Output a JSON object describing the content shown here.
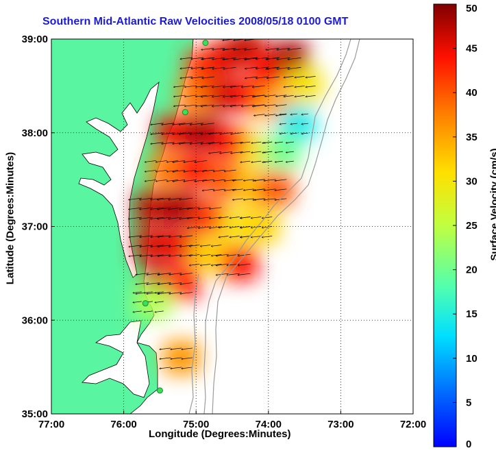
{
  "chart_data": {
    "type": "heatmap",
    "title": "Southern Mid-Atlantic Raw Velocities 2008/05/18 0100 GMT",
    "xlabel": "Longitude (Degrees:Minutes)",
    "ylabel": "Latitude (Degrees:Minutes)",
    "xlim": [
      -77,
      -72
    ],
    "ylim": [
      35,
      39
    ],
    "x_ticks": [
      {
        "value": -77,
        "label": "77:00"
      },
      {
        "value": -76,
        "label": "76:00"
      },
      {
        "value": -75,
        "label": "75:00"
      },
      {
        "value": -74,
        "label": "74:00"
      },
      {
        "value": -73,
        "label": "73:00"
      },
      {
        "value": -72,
        "label": "72:00"
      }
    ],
    "y_ticks": [
      {
        "value": 35,
        "label": "35:00"
      },
      {
        "value": 36,
        "label": "36:00"
      },
      {
        "value": 37,
        "label": "37:00"
      },
      {
        "value": 38,
        "label": "38:00"
      },
      {
        "value": 39,
        "label": "39:00"
      }
    ],
    "grid": true,
    "colorbar": {
      "label": "Surface Velocity (cm/s)",
      "range": [
        0,
        50
      ],
      "colormap": "jet",
      "ticks": [
        {
          "value": 0,
          "label": "0"
        },
        {
          "value": 5,
          "label": "5"
        },
        {
          "value": 10,
          "label": "10"
        },
        {
          "value": 15,
          "label": "15"
        },
        {
          "value": 20,
          "label": "20"
        },
        {
          "value": 25,
          "label": "25"
        },
        {
          "value": 30,
          "label": "30"
        },
        {
          "value": 35,
          "label": "35"
        },
        {
          "value": 40,
          "label": "40"
        },
        {
          "value": 45,
          "label": "45"
        },
        {
          "value": 50,
          "label": "50"
        }
      ]
    },
    "field": [
      {
        "lon": -74.9,
        "lat": 38.7,
        "speed": 42
      },
      {
        "lon": -74.6,
        "lat": 38.8,
        "speed": 45
      },
      {
        "lon": -74.3,
        "lat": 38.9,
        "speed": 47
      },
      {
        "lon": -74.0,
        "lat": 38.7,
        "speed": 44
      },
      {
        "lon": -73.7,
        "lat": 38.8,
        "speed": 48
      },
      {
        "lon": -73.5,
        "lat": 38.5,
        "speed": 30
      },
      {
        "lon": -75.0,
        "lat": 38.4,
        "speed": 38
      },
      {
        "lon": -74.6,
        "lat": 38.4,
        "speed": 46
      },
      {
        "lon": -74.2,
        "lat": 38.4,
        "speed": 44
      },
      {
        "lon": -73.9,
        "lat": 38.3,
        "speed": 35
      },
      {
        "lon": -73.6,
        "lat": 38.1,
        "speed": 14
      },
      {
        "lon": -75.3,
        "lat": 38.0,
        "speed": 45
      },
      {
        "lon": -74.9,
        "lat": 38.0,
        "speed": 48
      },
      {
        "lon": -74.5,
        "lat": 37.9,
        "speed": 44
      },
      {
        "lon": -74.1,
        "lat": 37.8,
        "speed": 30
      },
      {
        "lon": -73.8,
        "lat": 37.8,
        "speed": 20
      },
      {
        "lon": -75.4,
        "lat": 37.6,
        "speed": 38
      },
      {
        "lon": -75.0,
        "lat": 37.6,
        "speed": 44
      },
      {
        "lon": -74.6,
        "lat": 37.5,
        "speed": 40
      },
      {
        "lon": -74.2,
        "lat": 37.4,
        "speed": 33
      },
      {
        "lon": -73.9,
        "lat": 37.4,
        "speed": 40
      },
      {
        "lon": -75.6,
        "lat": 37.2,
        "speed": 47
      },
      {
        "lon": -75.2,
        "lat": 37.2,
        "speed": 48
      },
      {
        "lon": -74.8,
        "lat": 37.1,
        "speed": 42
      },
      {
        "lon": -74.4,
        "lat": 37.0,
        "speed": 30
      },
      {
        "lon": -74.1,
        "lat": 37.0,
        "speed": 32
      },
      {
        "lon": -75.6,
        "lat": 36.8,
        "speed": 46
      },
      {
        "lon": -75.2,
        "lat": 36.8,
        "speed": 45
      },
      {
        "lon": -74.8,
        "lat": 36.7,
        "speed": 32
      },
      {
        "lon": -74.4,
        "lat": 36.6,
        "speed": 44
      },
      {
        "lon": -75.5,
        "lat": 36.4,
        "speed": 48
      },
      {
        "lon": -75.2,
        "lat": 36.4,
        "speed": 44
      },
      {
        "lon": -75.6,
        "lat": 36.2,
        "speed": 24
      },
      {
        "lon": -75.2,
        "lat": 35.6,
        "speed": 36
      }
    ],
    "stations": [
      {
        "lon": -74.87,
        "lat": 38.96
      },
      {
        "lon": -75.15,
        "lat": 38.22
      },
      {
        "lon": -75.7,
        "lat": 36.18
      },
      {
        "lon": -75.5,
        "lat": 35.25
      }
    ]
  }
}
